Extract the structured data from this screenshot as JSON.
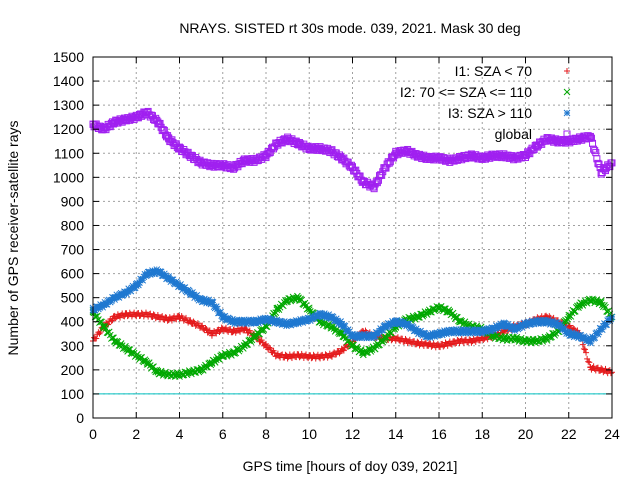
{
  "chart_data": {
    "type": "scatter",
    "title": "NRAYS. SISTED rt 30s mode. 039, 2021. Mask 30 deg",
    "xlabel": "GPS time [hours of doy 039, 2021]",
    "ylabel": "Number of GPS receiver-satellite rays",
    "xlim": [
      0,
      24
    ],
    "ylim": [
      0,
      1500
    ],
    "xticks": [
      0,
      2,
      4,
      6,
      8,
      10,
      12,
      14,
      16,
      18,
      20,
      22,
      24
    ],
    "yticks": [
      0,
      100,
      200,
      300,
      400,
      500,
      600,
      700,
      800,
      900,
      1000,
      1100,
      1200,
      1300,
      1400,
      1500
    ],
    "grid": true,
    "legend_position": "top-right",
    "reference_line": {
      "y": 100,
      "color": "#00c0c0"
    },
    "series": [
      {
        "name": "I1: SZA < 70",
        "marker": "+",
        "color": "#e41a1c",
        "x": [
          0,
          0.5,
          1,
          1.5,
          2,
          2.5,
          3,
          3.5,
          4,
          4.5,
          5,
          5.5,
          6,
          6.5,
          7,
          7.5,
          8,
          8.5,
          9,
          9.5,
          10,
          10.5,
          11,
          11.5,
          12,
          12.5,
          13,
          13.5,
          14,
          14.5,
          15,
          15.5,
          16,
          16.5,
          17,
          17.5,
          18,
          18.5,
          19,
          19.5,
          20,
          20.5,
          21,
          21.5,
          22,
          22.5,
          23,
          23.5,
          24
        ],
        "y": [
          320,
          380,
          420,
          430,
          430,
          430,
          420,
          410,
          420,
          400,
          380,
          350,
          370,
          360,
          370,
          340,
          300,
          260,
          255,
          260,
          255,
          255,
          260,
          280,
          320,
          360,
          340,
          330,
          330,
          320,
          310,
          305,
          300,
          310,
          320,
          320,
          330,
          340,
          360,
          380,
          390,
          410,
          420,
          400,
          380,
          350,
          210,
          200,
          190
        ]
      },
      {
        "name": "I2: 70 <= SZA <= 110",
        "marker": "x",
        "color": "#00a800",
        "x": [
          0,
          0.5,
          1,
          1.5,
          2,
          2.5,
          3,
          3.5,
          4,
          4.5,
          5,
          5.5,
          6,
          6.5,
          7,
          7.5,
          8,
          8.5,
          9,
          9.5,
          10,
          10.5,
          11,
          11.5,
          12,
          12.5,
          13,
          13.5,
          14,
          14.5,
          15,
          15.5,
          16,
          16.5,
          17,
          17.5,
          18,
          18.5,
          19,
          19.5,
          20,
          20.5,
          21,
          21.5,
          22,
          22.5,
          23,
          23.5,
          24
        ],
        "y": [
          440,
          380,
          320,
          290,
          260,
          230,
          190,
          180,
          180,
          190,
          200,
          230,
          260,
          270,
          300,
          340,
          380,
          450,
          490,
          500,
          450,
          400,
          380,
          350,
          300,
          270,
          290,
          330,
          380,
          410,
          420,
          440,
          460,
          440,
          400,
          380,
          370,
          340,
          330,
          330,
          320,
          320,
          330,
          360,
          420,
          470,
          490,
          480,
          420
        ]
      },
      {
        "name": "I3: SZA > 110",
        "marker": "*",
        "color": "#1f78d0",
        "x": [
          0,
          0.5,
          1,
          1.5,
          2,
          2.5,
          3,
          3.5,
          4,
          4.5,
          5,
          5.5,
          6,
          6.5,
          7,
          7.5,
          8,
          8.5,
          9,
          9.5,
          10,
          10.5,
          11,
          11.5,
          12,
          12.5,
          13,
          13.5,
          14,
          14.5,
          15,
          15.5,
          16,
          16.5,
          17,
          17.5,
          18,
          18.5,
          19,
          19.5,
          20,
          20.5,
          21,
          21.5,
          22,
          22.5,
          23,
          23.5,
          24
        ],
        "y": [
          450,
          470,
          500,
          520,
          550,
          600,
          610,
          580,
          550,
          520,
          490,
          480,
          420,
          400,
          400,
          400,
          410,
          400,
          390,
          400,
          410,
          430,
          420,
          390,
          340,
          340,
          340,
          380,
          400,
          390,
          360,
          340,
          350,
          360,
          360,
          360,
          360,
          370,
          390,
          370,
          390,
          400,
          400,
          390,
          350,
          340,
          320,
          370,
          420
        ]
      },
      {
        "name": "global",
        "marker": "square",
        "color": "#a020f0",
        "x": [
          0,
          0.5,
          1,
          1.5,
          2,
          2.5,
          3,
          3.5,
          4,
          4.5,
          5,
          5.5,
          6,
          6.5,
          7,
          7.5,
          8,
          8.5,
          9,
          9.5,
          10,
          10.5,
          11,
          11.5,
          12,
          12.5,
          13,
          13.5,
          14,
          14.5,
          15,
          15.5,
          16,
          16.5,
          17,
          17.5,
          18,
          18.5,
          19,
          19.5,
          20,
          20.5,
          21,
          21.5,
          22,
          22.5,
          23,
          23.5,
          24
        ],
        "y": [
          1220,
          1200,
          1230,
          1240,
          1250,
          1270,
          1230,
          1160,
          1120,
          1090,
          1060,
          1050,
          1050,
          1040,
          1070,
          1070,
          1090,
          1140,
          1160,
          1140,
          1120,
          1120,
          1110,
          1080,
          1040,
          980,
          960,
          1040,
          1100,
          1110,
          1090,
          1080,
          1080,
          1070,
          1080,
          1090,
          1080,
          1090,
          1090,
          1080,
          1090,
          1130,
          1160,
          1150,
          1150,
          1160,
          1170,
          1020,
          1060
        ]
      }
    ]
  }
}
